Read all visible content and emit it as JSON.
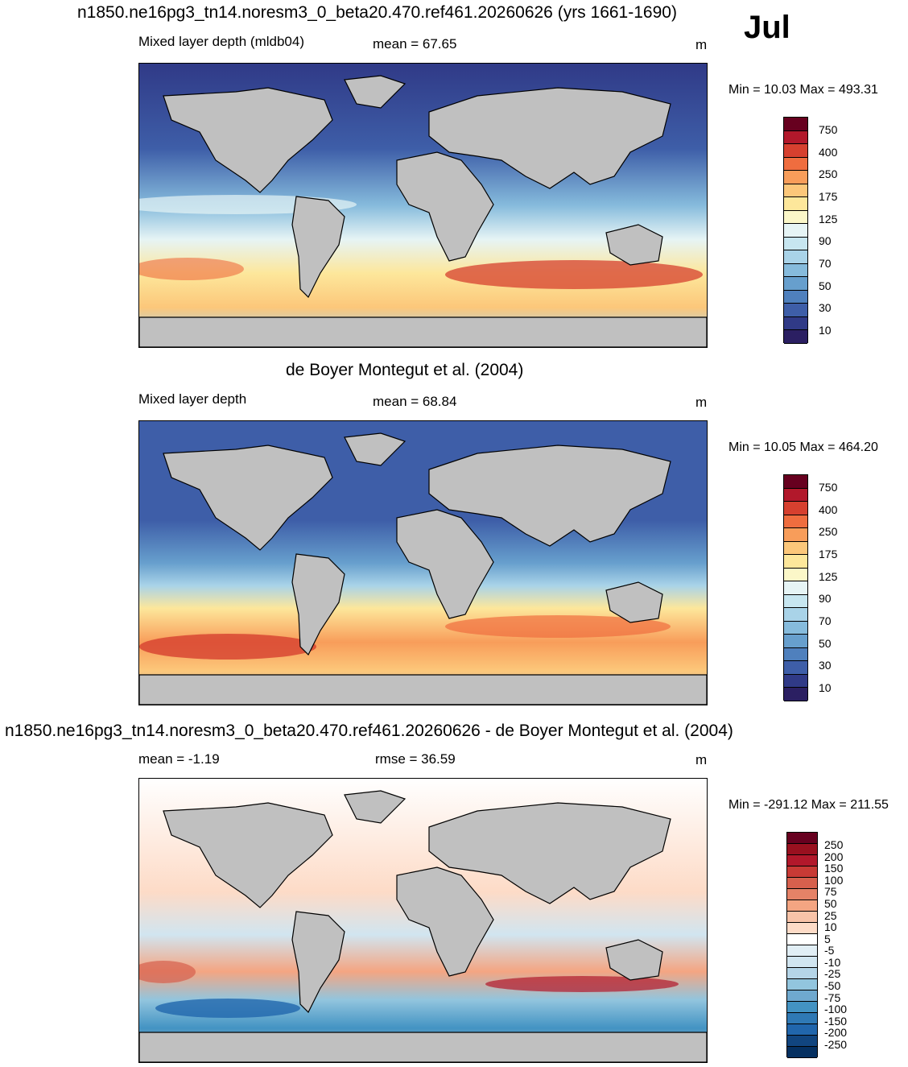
{
  "month": "Jul",
  "panels": [
    {
      "title": "n1850.ne16pg3_tn14.noresm3_0_beta20.470.ref461.20260626 (yrs 1661-1690)",
      "left": "Mixed layer depth (mldb04)",
      "mid": "mean =  67.65",
      "unit": "m",
      "minmax": "Min =  10.03 Max = 493.31",
      "colorbar": {
        "labels": [
          "750",
          "400",
          "250",
          "175",
          "125",
          "90",
          "70",
          "50",
          "30",
          "10"
        ],
        "colors": [
          "#67001f",
          "#b2182b",
          "#d6402f",
          "#ef6d3f",
          "#f89d5a",
          "#fcc77a",
          "#fde79b",
          "#fbf7c8",
          "#e6f4f5",
          "#c7e6f0",
          "#a9d3e8",
          "#86bbdc",
          "#679fcd",
          "#4f80bd",
          "#3e5ea8",
          "#303a87",
          "#2b1f62"
        ]
      }
    },
    {
      "title": "de Boyer Montegut et al. (2004)",
      "left": "Mixed layer depth",
      "mid": "mean =  68.84",
      "unit": "m",
      "minmax": "Min =  10.05 Max = 464.20",
      "colorbar": {
        "labels": [
          "750",
          "400",
          "250",
          "175",
          "125",
          "90",
          "70",
          "50",
          "30",
          "10"
        ],
        "colors": [
          "#67001f",
          "#b2182b",
          "#d6402f",
          "#ef6d3f",
          "#f89d5a",
          "#fcc77a",
          "#fde79b",
          "#fbf7c8",
          "#e6f4f5",
          "#c7e6f0",
          "#a9d3e8",
          "#86bbdc",
          "#679fcd",
          "#4f80bd",
          "#3e5ea8",
          "#303a87",
          "#2b1f62"
        ]
      }
    },
    {
      "title": "n1850.ne16pg3_tn14.noresm3_0_beta20.470.ref461.20260626 - de Boyer Montegut et al. (2004)",
      "left": "mean =  -1.19",
      "mid": "rmse =  36.59",
      "unit": "m",
      "minmax": "Min = -291.12 Max = 211.55",
      "colorbar": {
        "labels": [
          "250",
          "200",
          "150",
          "100",
          "75",
          "50",
          "25",
          "10",
          "5",
          "-5",
          "-10",
          "-25",
          "-50",
          "-75",
          "-100",
          "-150",
          "-200",
          "-250"
        ],
        "colors": [
          "#67001f",
          "#99101f",
          "#b2182b",
          "#c83a35",
          "#d6604d",
          "#e58267",
          "#f4a582",
          "#f8c3a8",
          "#fddbc7",
          "#ffffff",
          "#e1eef5",
          "#d1e5f0",
          "#b5d5e8",
          "#92c5de",
          "#6fa9cf",
          "#4393c3",
          "#2f79b5",
          "#2166ac",
          "#11457f",
          "#053061"
        ]
      }
    }
  ],
  "map_colors": {
    "land": "#c0c0c0",
    "ocean_base": "#3b58a0"
  }
}
